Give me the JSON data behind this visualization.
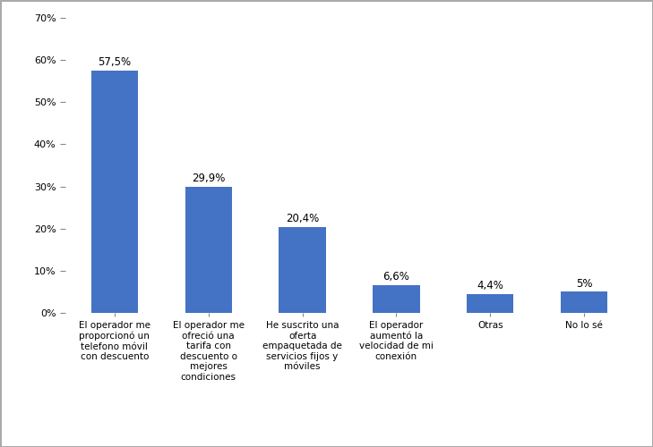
{
  "categories": [
    "El operador me\nproporcionó un\ntelefono móvil\ncon descuento",
    "El operador me\nofreció una\ntarifa con\ndescuento o\nmejores\ncondiciones",
    "He suscrito una\noferta\nempaquetada de\nservicios fijos y\nmóviles",
    "El operador\naumentó la\nvelocidad de mi\nconexión",
    "Otras",
    "No lo sé"
  ],
  "values": [
    57.5,
    29.9,
    20.4,
    6.6,
    4.4,
    5.0
  ],
  "labels": [
    "57,5%",
    "29,9%",
    "20,4%",
    "6,6%",
    "4,4%",
    "5%"
  ],
  "bar_color": "#4472C4",
  "ylim": [
    0,
    70
  ],
  "yticks": [
    0,
    10,
    20,
    30,
    40,
    50,
    60,
    70
  ],
  "ytick_labels": [
    "0%",
    "10%",
    "20%",
    "30%",
    "40%",
    "50%",
    "60%",
    "70%"
  ],
  "background_color": "#ffffff",
  "border_color": "#aaaaaa",
  "bar_width": 0.5,
  "label_fontsize": 8.5,
  "tick_fontsize": 8,
  "cat_fontsize": 7.5,
  "figsize": [
    7.29,
    5.0
  ],
  "dpi": 100
}
